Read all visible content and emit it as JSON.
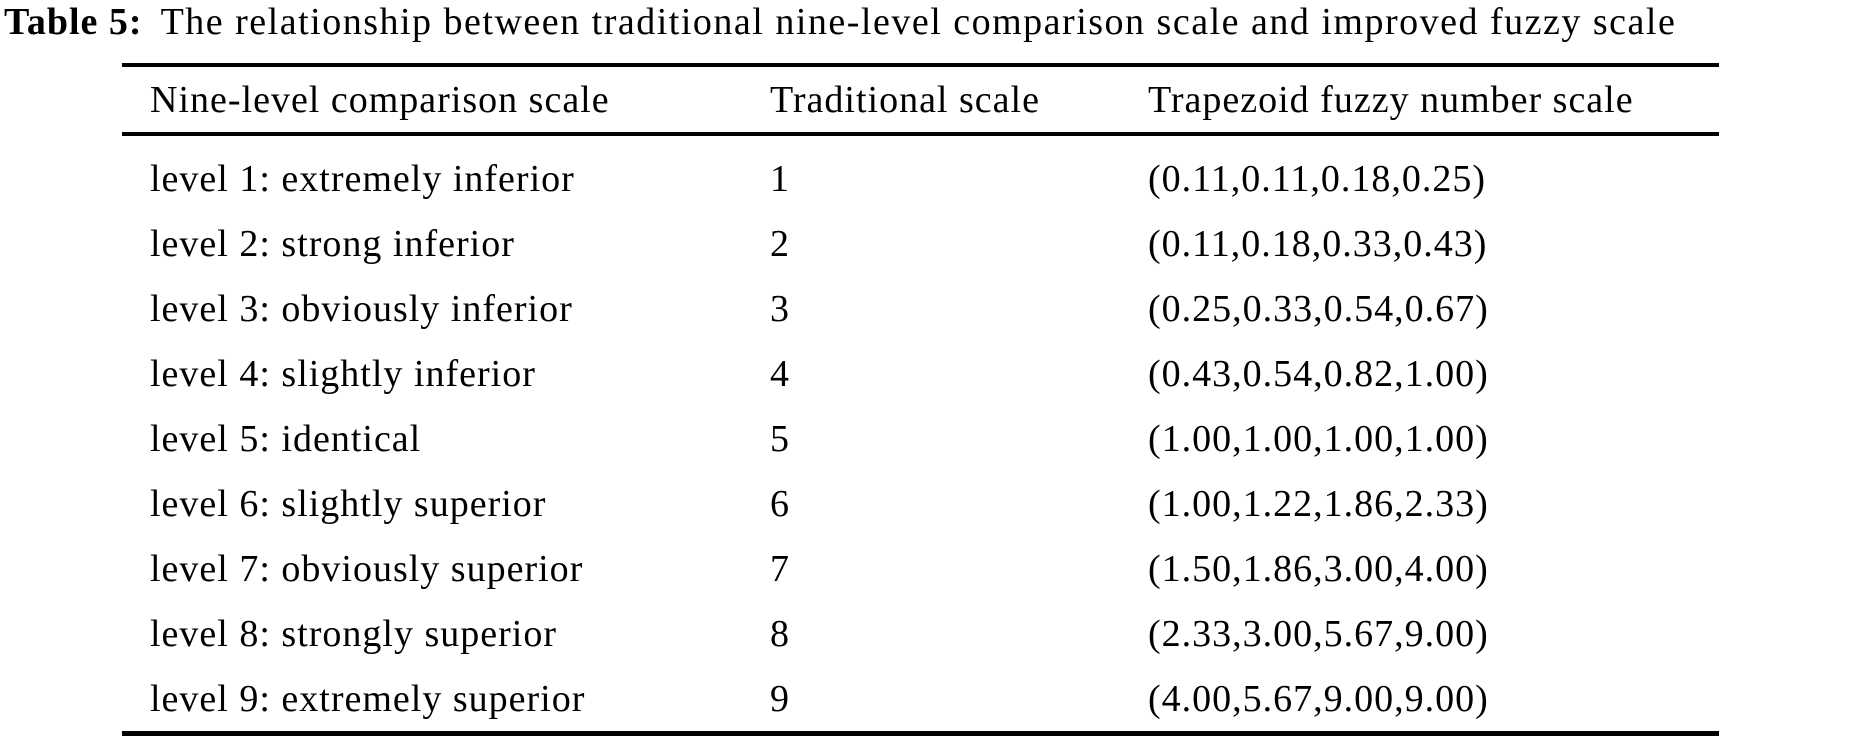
{
  "caption": {
    "label": "Table 5:",
    "text": "The relationship between traditional nine-level comparison scale and improved fuzzy scale"
  },
  "table": {
    "headers": [
      "Nine-level comparison scale",
      "Traditional scale",
      "Trapezoid fuzzy number scale"
    ],
    "rows": [
      {
        "scale": "level 1: extremely inferior",
        "traditional": "1",
        "fuzzy": "(0.11,0.11,0.18,0.25)"
      },
      {
        "scale": "level 2: strong inferior",
        "traditional": "2",
        "fuzzy": "(0.11,0.18,0.33,0.43)"
      },
      {
        "scale": "level 3: obviously inferior",
        "traditional": "3",
        "fuzzy": "(0.25,0.33,0.54,0.67)"
      },
      {
        "scale": "level 4: slightly inferior",
        "traditional": "4",
        "fuzzy": "(0.43,0.54,0.82,1.00)"
      },
      {
        "scale": "level 5: identical",
        "traditional": "5",
        "fuzzy": "(1.00,1.00,1.00,1.00)"
      },
      {
        "scale": "level 6: slightly superior",
        "traditional": "6",
        "fuzzy": "(1.00,1.22,1.86,2.33)"
      },
      {
        "scale": "level 7: obviously superior",
        "traditional": "7",
        "fuzzy": "(1.50,1.86,3.00,4.00)"
      },
      {
        "scale": "level 8: strongly superior",
        "traditional": "8",
        "fuzzy": "(2.33,3.00,5.67,9.00)"
      },
      {
        "scale": "level 9: extremely superior",
        "traditional": "9",
        "fuzzy": "(4.00,5.67,9.00,9.00)"
      }
    ]
  },
  "colors": {
    "text": "#000000",
    "background": "#ffffff",
    "rule": "#000000"
  }
}
